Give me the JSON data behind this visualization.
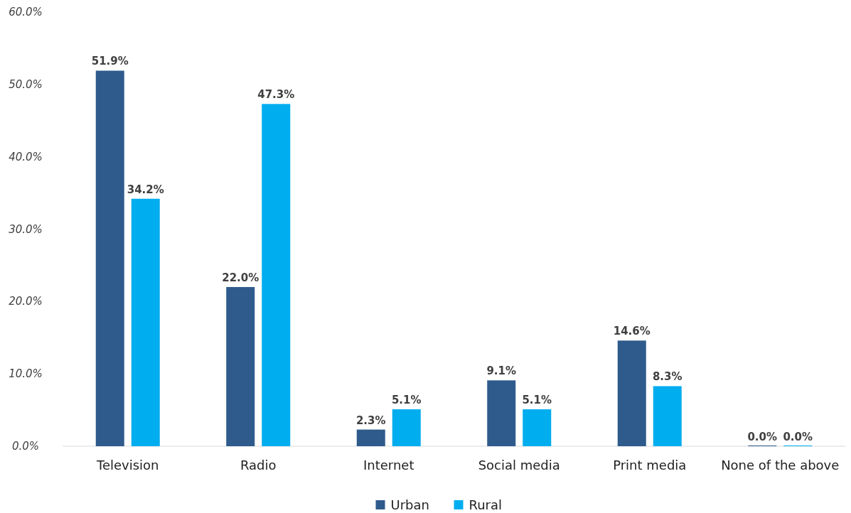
{
  "chart_data": {
    "type": "bar",
    "categories": [
      "Television",
      "Radio",
      "Internet",
      "Social media",
      "Print media",
      "None of the above"
    ],
    "series": [
      {
        "name": "Urban",
        "color": "#2e5b8c",
        "values": [
          51.9,
          22.0,
          2.3,
          9.1,
          14.6,
          0.0
        ],
        "value_labels": [
          "51.9%",
          "22.0%",
          "2.3%",
          "9.1%",
          "14.6%",
          "0.0%"
        ]
      },
      {
        "name": "Rural",
        "color": "#00adef",
        "values": [
          34.2,
          47.3,
          5.1,
          5.1,
          8.3,
          0.0
        ],
        "value_labels": [
          "34.2%",
          "47.3%",
          "5.1%",
          "5.1%",
          "8.3%",
          "0.0%"
        ]
      }
    ],
    "ylim": [
      0,
      60
    ],
    "yticks": [
      {
        "value": 0,
        "label": "0.0%"
      },
      {
        "value": 10,
        "label": "10.0%"
      },
      {
        "value": 20,
        "label": "20.0%"
      },
      {
        "value": 30,
        "label": "30.0%"
      },
      {
        "value": 40,
        "label": "40.0%"
      },
      {
        "value": 50,
        "label": "50.0%"
      },
      {
        "value": 60,
        "label": "60.0%"
      }
    ],
    "grid": false,
    "legend": "bottom"
  }
}
